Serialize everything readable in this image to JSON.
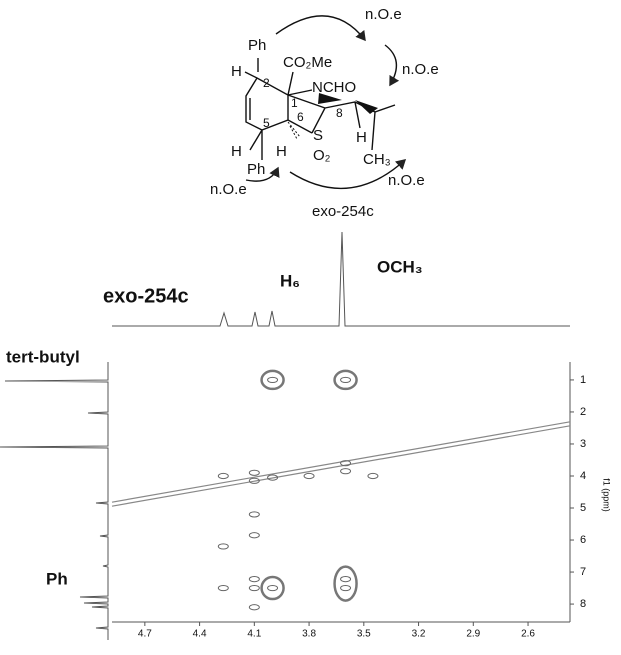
{
  "structure": {
    "labels": [
      "Ph",
      "H",
      "2",
      "CO₂Me",
      "NCHO",
      "1",
      "6",
      "8",
      "5",
      "S",
      "H",
      "CH₃",
      "O₂",
      "H",
      "Ph",
      "H"
    ],
    "noe": [
      "n.O.e",
      "n.O.e",
      "n.O.e",
      "n.O.e"
    ]
  },
  "annotations": {
    "compound_top": "exo-254c",
    "och3": "OCH₃",
    "h6": "H₆",
    "compound_left": "exo-254c",
    "tert_butyl": "tert-butyl",
    "ph": "Ph"
  },
  "chart_data": {
    "type": "scatter",
    "ylabel": "f1 (ppm)",
    "xlim": [
      4.88,
      2.37
    ],
    "ylim": [
      0.44,
      8.56
    ],
    "xticks": [
      4.7,
      4.4,
      4.1,
      3.8,
      3.5,
      3.2,
      2.9,
      2.6
    ],
    "yticks": [
      1,
      2,
      3,
      4,
      5,
      6,
      7,
      8
    ],
    "x": [
      4.0,
      3.6,
      4.27,
      4.1,
      4.1,
      4.0,
      3.8,
      3.6,
      3.6,
      3.45,
      4.27,
      4.1,
      4.1,
      4.27,
      4.1,
      4.1,
      4.0,
      4.1,
      3.6,
      3.6
    ],
    "y": [
      1.0,
      1.0,
      4.0,
      3.9,
      4.15,
      4.05,
      4.0,
      3.6,
      3.85,
      4.0,
      6.2,
      5.85,
      5.2,
      7.5,
      7.22,
      7.5,
      7.5,
      8.1,
      7.22,
      7.5
    ]
  }
}
